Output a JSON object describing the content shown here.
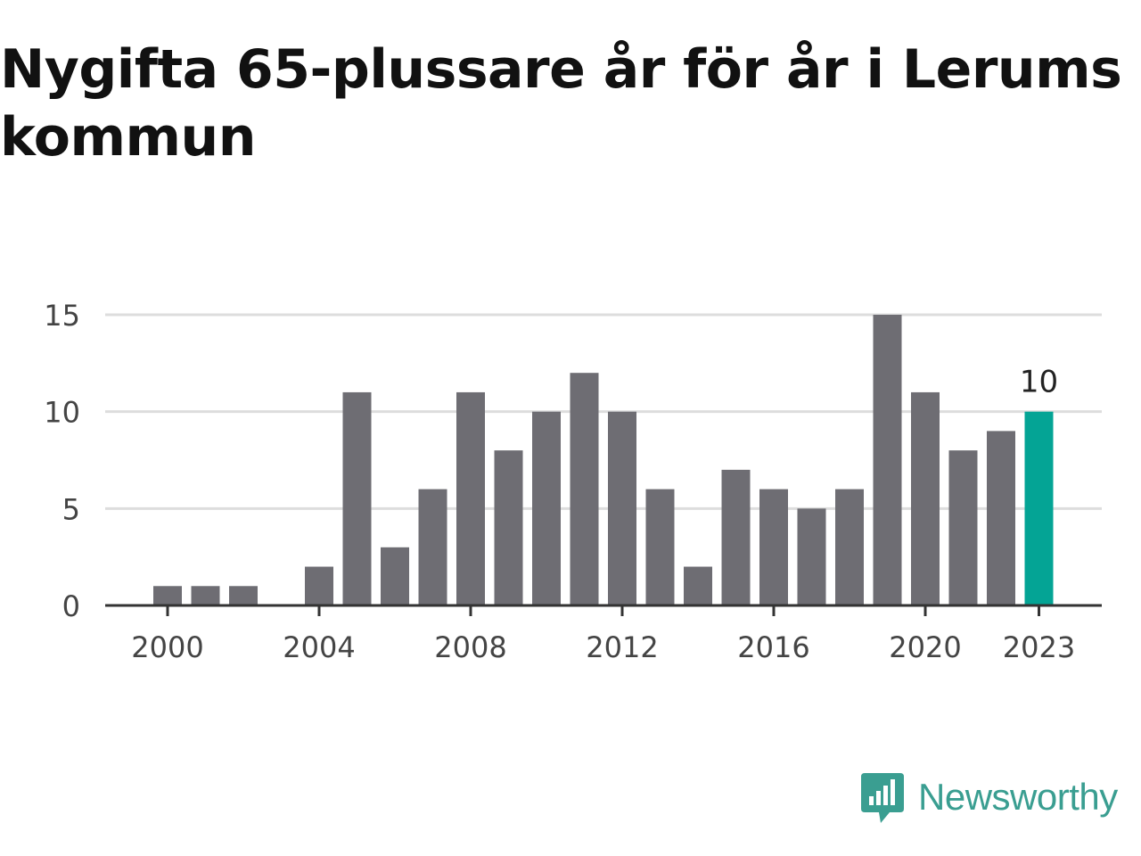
{
  "title": "Nygifta 65-plussare år för år i Lerums kommun",
  "logo": {
    "text": "Newsworthy",
    "icon": "newsworthy-logo-icon",
    "color": "#3a9e91"
  },
  "colors": {
    "bar": "#6e6d73",
    "highlight": "#04a495",
    "grid": "#dddddd",
    "axis": "#333333"
  },
  "chart_data": {
    "type": "bar",
    "title": "Nygifta 65-plussare år för år i Lerums kommun",
    "xlabel": "",
    "ylabel": "",
    "categories": [
      2000,
      2001,
      2002,
      2003,
      2004,
      2005,
      2006,
      2007,
      2008,
      2009,
      2010,
      2011,
      2012,
      2013,
      2014,
      2015,
      2016,
      2017,
      2018,
      2019,
      2020,
      2021,
      2022,
      2023
    ],
    "values": [
      1,
      1,
      1,
      0,
      2,
      11,
      3,
      6,
      11,
      8,
      10,
      12,
      10,
      6,
      2,
      7,
      6,
      5,
      6,
      15,
      11,
      8,
      9,
      10
    ],
    "highlight_category": 2023,
    "highlight_label": "10",
    "ylim": [
      0,
      15
    ],
    "y_ticks": [
      0,
      5,
      10,
      15
    ],
    "x_ticks": [
      2000,
      2004,
      2008,
      2012,
      2016,
      2020,
      2023
    ],
    "grid": true,
    "legend": "none"
  }
}
